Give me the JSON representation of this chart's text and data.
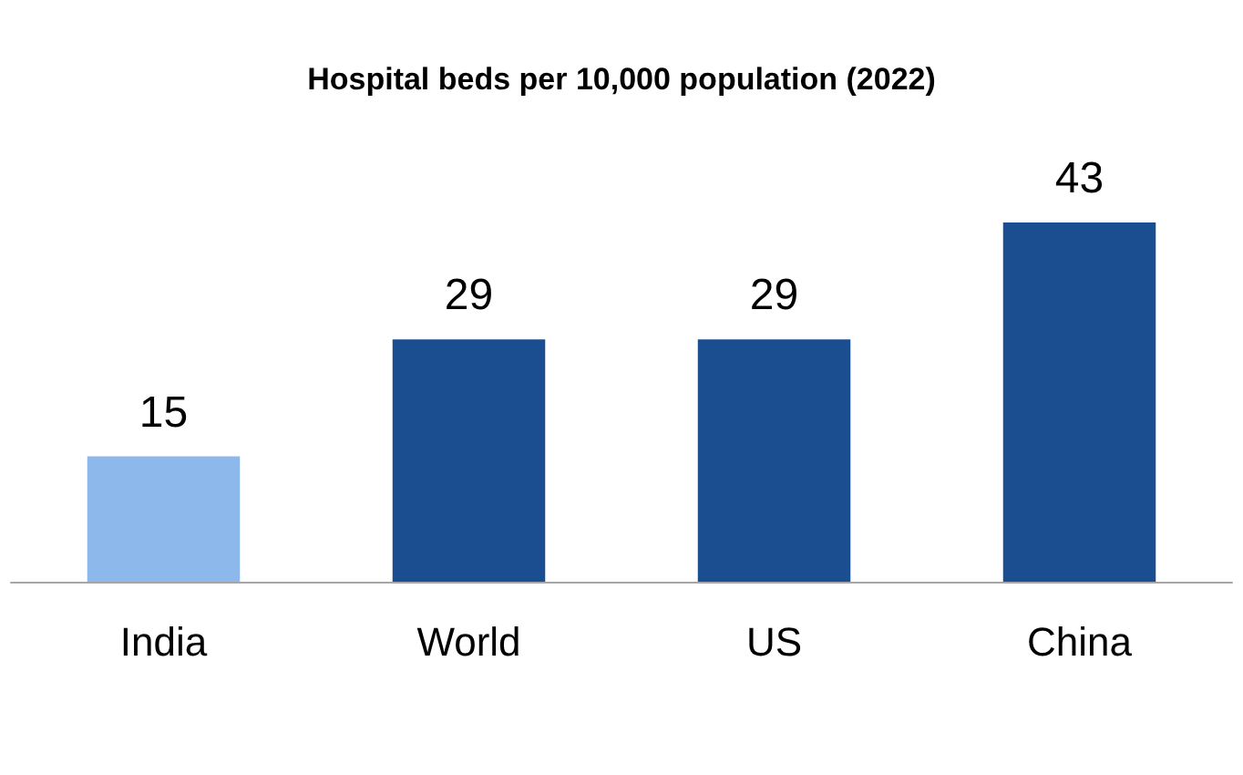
{
  "chart_data": {
    "type": "bar",
    "title": "Hospital beds per 10,000 population (2022)",
    "categories": [
      "India",
      "World",
      "US",
      "China"
    ],
    "values": [
      15,
      29,
      29,
      43
    ],
    "colors": [
      "#8cb8ec",
      "#1a4e91",
      "#1a4e91",
      "#1a4e91"
    ],
    "data_labels": true
  }
}
